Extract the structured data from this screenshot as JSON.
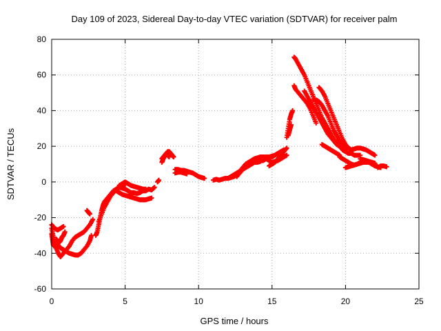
{
  "chart_data": {
    "type": "scatter",
    "title": "Day 109 of 2023, Sidereal Day-to-day VTEC variation (SDTVAR) for receiver palm",
    "xlabel": "GPS time / hours",
    "ylabel": "SDTVAR / TECUs",
    "xlim": [
      0,
      25
    ],
    "ylim": [
      -60,
      80
    ],
    "xticks": [
      0,
      5,
      10,
      15,
      20,
      25
    ],
    "yticks": [
      -60,
      -40,
      -20,
      0,
      20,
      40,
      60,
      80
    ],
    "grid": true,
    "marker": "+",
    "color": "#ff0000",
    "series": [
      {
        "name": "s1",
        "x": [
          0.0,
          0.1,
          0.2,
          0.3,
          0.45,
          0.6,
          0.8,
          1.0,
          1.2,
          1.4,
          1.6,
          1.8,
          2.0,
          2.2,
          2.4,
          2.6,
          2.8
        ],
        "y": [
          -26,
          -30,
          -34,
          -37,
          -40,
          -42,
          -40,
          -38,
          -36,
          -33,
          -31,
          -30,
          -29,
          -28,
          -26,
          -24,
          -21
        ]
      },
      {
        "name": "s2",
        "x": [
          0.4,
          0.6,
          0.8,
          1.0,
          1.2,
          1.4,
          1.6,
          1.8,
          2.0,
          2.2,
          2.4,
          2.6,
          2.7
        ],
        "y": [
          -35,
          -37,
          -38,
          -39,
          -40,
          -40.5,
          -41,
          -41,
          -40,
          -38,
          -36,
          -33,
          -30
        ]
      },
      {
        "name": "s3",
        "x": [
          0.0,
          0.05,
          0.1,
          0.15
        ],
        "y": [
          -29,
          -32,
          -35,
          -36
        ]
      },
      {
        "name": "s4",
        "x": [
          0.3,
          0.4,
          0.5,
          0.6,
          0.7,
          0.8,
          0.9
        ],
        "y": [
          -32,
          -33,
          -34,
          -33,
          -31,
          -30,
          -28
        ]
      },
      {
        "name": "s5",
        "x": [
          0.0,
          0.2,
          0.4,
          0.6,
          0.8
        ],
        "y": [
          -24,
          -26,
          -27,
          -26,
          -25
        ]
      },
      {
        "name": "s6",
        "x": [
          2.4,
          2.5,
          2.6
        ],
        "y": [
          -16,
          -17,
          -18
        ]
      },
      {
        "name": "s7",
        "x": [
          3.0,
          3.1,
          3.2,
          3.3,
          3.4,
          3.5,
          3.6,
          3.8,
          4.0,
          4.2,
          4.4,
          4.6,
          4.8,
          5.0,
          5.2,
          5.4,
          5.6,
          5.8,
          6.0,
          6.2,
          6.4,
          6.6,
          6.8,
          7.0
        ],
        "y": [
          -30,
          -28,
          -24,
          -20,
          -16,
          -13,
          -11,
          -9,
          -7,
          -5,
          -4,
          -3,
          -3.5,
          -4,
          -5,
          -6,
          -6,
          -6.5,
          -6,
          -5,
          -5,
          -4,
          -4.5,
          -3
        ]
      },
      {
        "name": "s8",
        "x": [
          3.2,
          3.4,
          3.6,
          3.8,
          4.0,
          4.2,
          4.4,
          4.6,
          4.8,
          5.0
        ],
        "y": [
          -22,
          -18,
          -14,
          -11,
          -8,
          -6,
          -4,
          -3,
          -2,
          -1.5
        ]
      },
      {
        "name": "s9",
        "x": [
          4.4,
          4.6,
          4.8,
          5.0,
          5.2,
          5.4,
          5.6,
          5.8,
          6.0,
          6.2,
          6.4,
          6.6,
          6.8
        ],
        "y": [
          -5,
          -6,
          -7,
          -7.5,
          -8,
          -8.5,
          -9,
          -9.5,
          -10,
          -10,
          -10,
          -9.5,
          -9
        ]
      },
      {
        "name": "s10",
        "x": [
          4.6,
          4.8,
          5.0,
          5.2,
          5.4,
          5.6,
          5.8,
          6.0,
          6.2,
          6.4
        ],
        "y": [
          -2,
          -1,
          0,
          -1,
          -2,
          -2.5,
          -3,
          -3.5,
          -4,
          -4
        ]
      },
      {
        "name": "s11",
        "x": [
          7.2,
          7.3
        ],
        "y": [
          0,
          1
        ]
      },
      {
        "name": "s12",
        "x": [
          7.5,
          7.6,
          7.7,
          7.8,
          7.9,
          8.0,
          8.1,
          8.2,
          8.3
        ],
        "y": [
          11,
          13,
          15,
          16,
          17,
          17,
          16,
          15,
          14
        ]
      },
      {
        "name": "s13",
        "x": [
          7.5,
          7.6,
          7.7,
          7.8,
          7.9,
          8.0
        ],
        "y": [
          13,
          14,
          15,
          15.5,
          15,
          14
        ]
      },
      {
        "name": "s14",
        "x": [
          8.4,
          8.6,
          8.8,
          9.0,
          9.2,
          9.4,
          9.6,
          9.8,
          10.0,
          10.2,
          10.4
        ],
        "y": [
          7,
          7,
          6.5,
          6.5,
          6,
          5.5,
          5,
          4,
          3,
          2.5,
          2
        ]
      },
      {
        "name": "s15",
        "x": [
          8.4,
          8.6,
          8.8,
          9.0,
          9.2
        ],
        "y": [
          5,
          5.5,
          5.5,
          5,
          4.5
        ]
      },
      {
        "name": "s16",
        "x": [
          11.0,
          11.2,
          11.4,
          11.6,
          11.8,
          12.0,
          12.2,
          12.4,
          12.6,
          12.8,
          13.0,
          13.2,
          13.4,
          13.6,
          13.8,
          14.0,
          14.2,
          14.4,
          14.6,
          14.8,
          15.0,
          15.2,
          15.4,
          15.6,
          15.8
        ],
        "y": [
          1,
          1.5,
          1,
          1.5,
          2,
          2,
          2.5,
          3,
          4,
          6,
          8,
          10,
          11,
          12,
          13,
          13.5,
          14,
          14,
          14,
          14,
          14.5,
          15,
          16,
          17,
          18
        ]
      },
      {
        "name": "s17",
        "x": [
          12.0,
          12.2,
          12.4,
          12.6,
          12.8,
          13.0,
          13.2,
          13.4,
          13.6,
          13.8,
          14.0,
          14.2
        ],
        "y": [
          2,
          3,
          4,
          5,
          6,
          7,
          8,
          9,
          10,
          11,
          11,
          11.5
        ]
      },
      {
        "name": "s18",
        "x": [
          12.6,
          12.8,
          13.0,
          13.2,
          13.4,
          13.6,
          13.8,
          14.0,
          14.2,
          14.4,
          14.6,
          14.8,
          15.0,
          15.2,
          15.4,
          15.6,
          15.8,
          16.0
        ],
        "y": [
          3,
          5,
          7,
          9,
          10,
          11,
          12,
          13,
          14,
          14,
          13,
          12,
          11,
          11.5,
          12,
          13,
          14,
          15
        ]
      },
      {
        "name": "s19",
        "x": [
          14.8,
          15.0,
          15.2,
          15.4,
          15.6,
          15.8,
          16.0
        ],
        "y": [
          9,
          10,
          11,
          13,
          15,
          17,
          19
        ]
      },
      {
        "name": "s20",
        "x": [
          16.0,
          16.1,
          16.2,
          16.3,
          16.4
        ],
        "y": [
          25,
          30,
          35,
          38,
          40
        ]
      },
      {
        "name": "s21",
        "x": [
          16.1,
          16.2,
          16.3
        ],
        "y": [
          26,
          29,
          32
        ]
      },
      {
        "name": "s22",
        "x": [
          16.5,
          16.6,
          16.8,
          17.0,
          17.2,
          17.4,
          17.6,
          17.8,
          18.0,
          18.2,
          18.4,
          18.6,
          18.8,
          19.0,
          19.2,
          19.4,
          19.6,
          19.8,
          20.0,
          20.2,
          20.4,
          20.6,
          20.8,
          21.0
        ],
        "y": [
          70,
          69,
          66,
          63,
          60,
          56,
          52,
          48,
          44,
          40,
          36,
          33,
          30,
          27,
          24,
          22,
          20,
          18,
          17,
          16,
          16,
          15,
          15,
          15
        ]
      },
      {
        "name": "s23",
        "x": [
          16.5,
          16.6,
          16.8,
          17.0,
          17.2,
          17.4,
          17.6,
          17.8,
          18.0
        ],
        "y": [
          54,
          52,
          50,
          48,
          46,
          44,
          41,
          37,
          33
        ]
      },
      {
        "name": "s24",
        "x": [
          17.2,
          17.4,
          17.6,
          17.8,
          18.0,
          18.2,
          18.4,
          18.6,
          18.8,
          19.0,
          19.2,
          19.4,
          19.6,
          19.8
        ],
        "y": [
          51,
          48,
          45,
          42,
          39,
          36,
          33,
          30,
          27,
          25,
          23,
          21,
          20,
          19
        ]
      },
      {
        "name": "s25",
        "x": [
          17.8,
          18.0,
          18.2,
          18.4,
          18.6,
          18.8,
          19.0,
          19.2,
          19.4,
          19.6,
          19.8,
          20.0
        ],
        "y": [
          46,
          46,
          45,
          43,
          40,
          37,
          33,
          29,
          26,
          23,
          20,
          18
        ]
      },
      {
        "name": "s26",
        "x": [
          18.2,
          18.4,
          18.6,
          18.8,
          19.0,
          19.2,
          19.4,
          19.6,
          19.8,
          20.0,
          20.2,
          20.4,
          20.6,
          20.8,
          21.0,
          21.2,
          21.4,
          21.6,
          21.8,
          22.0
        ],
        "y": [
          53,
          51,
          48,
          44,
          40,
          36,
          32,
          28,
          24,
          21,
          19,
          18,
          18.5,
          19,
          19,
          18.5,
          18,
          17,
          16,
          15
        ]
      },
      {
        "name": "s27",
        "x": [
          18.4,
          18.6,
          18.8,
          19.0,
          19.2,
          19.4,
          19.6
        ],
        "y": [
          21,
          20,
          19,
          18,
          17,
          16,
          15
        ]
      },
      {
        "name": "s28",
        "x": [
          19.6,
          19.8,
          20.0,
          20.2,
          20.4,
          20.6,
          20.8,
          21.0,
          21.2,
          21.4,
          21.6,
          21.8,
          22.0
        ],
        "y": [
          14,
          13,
          12,
          11,
          10,
          9.5,
          10,
          11,
          12,
          12,
          11,
          11,
          10
        ]
      },
      {
        "name": "s29",
        "x": [
          20.0,
          20.2,
          20.4,
          20.6,
          20.8,
          21.0,
          21.2,
          21.4,
          21.6,
          21.8,
          22.0,
          22.2,
          22.4
        ],
        "y": [
          8,
          8.5,
          9,
          9.5,
          10,
          10.5,
          11,
          11,
          11,
          10,
          9,
          8.5,
          8
        ]
      },
      {
        "name": "s30",
        "x": [
          21.0,
          21.2,
          21.4,
          21.6,
          21.8,
          22.0
        ],
        "y": [
          13,
          12.5,
          12,
          11.5,
          11,
          10.5
        ]
      },
      {
        "name": "s31",
        "x": [
          22.2,
          22.4,
          22.6,
          22.8
        ],
        "y": [
          8,
          9,
          9,
          8.5
        ]
      },
      {
        "name": "s32",
        "x": [
          14.2,
          14.4,
          14.6
        ],
        "y": [
          12,
          12,
          13
        ]
      },
      {
        "name": "s33",
        "x": [
          15.0,
          15.2,
          15.4,
          15.6
        ],
        "y": [
          14,
          15,
          16,
          17
        ]
      }
    ]
  }
}
